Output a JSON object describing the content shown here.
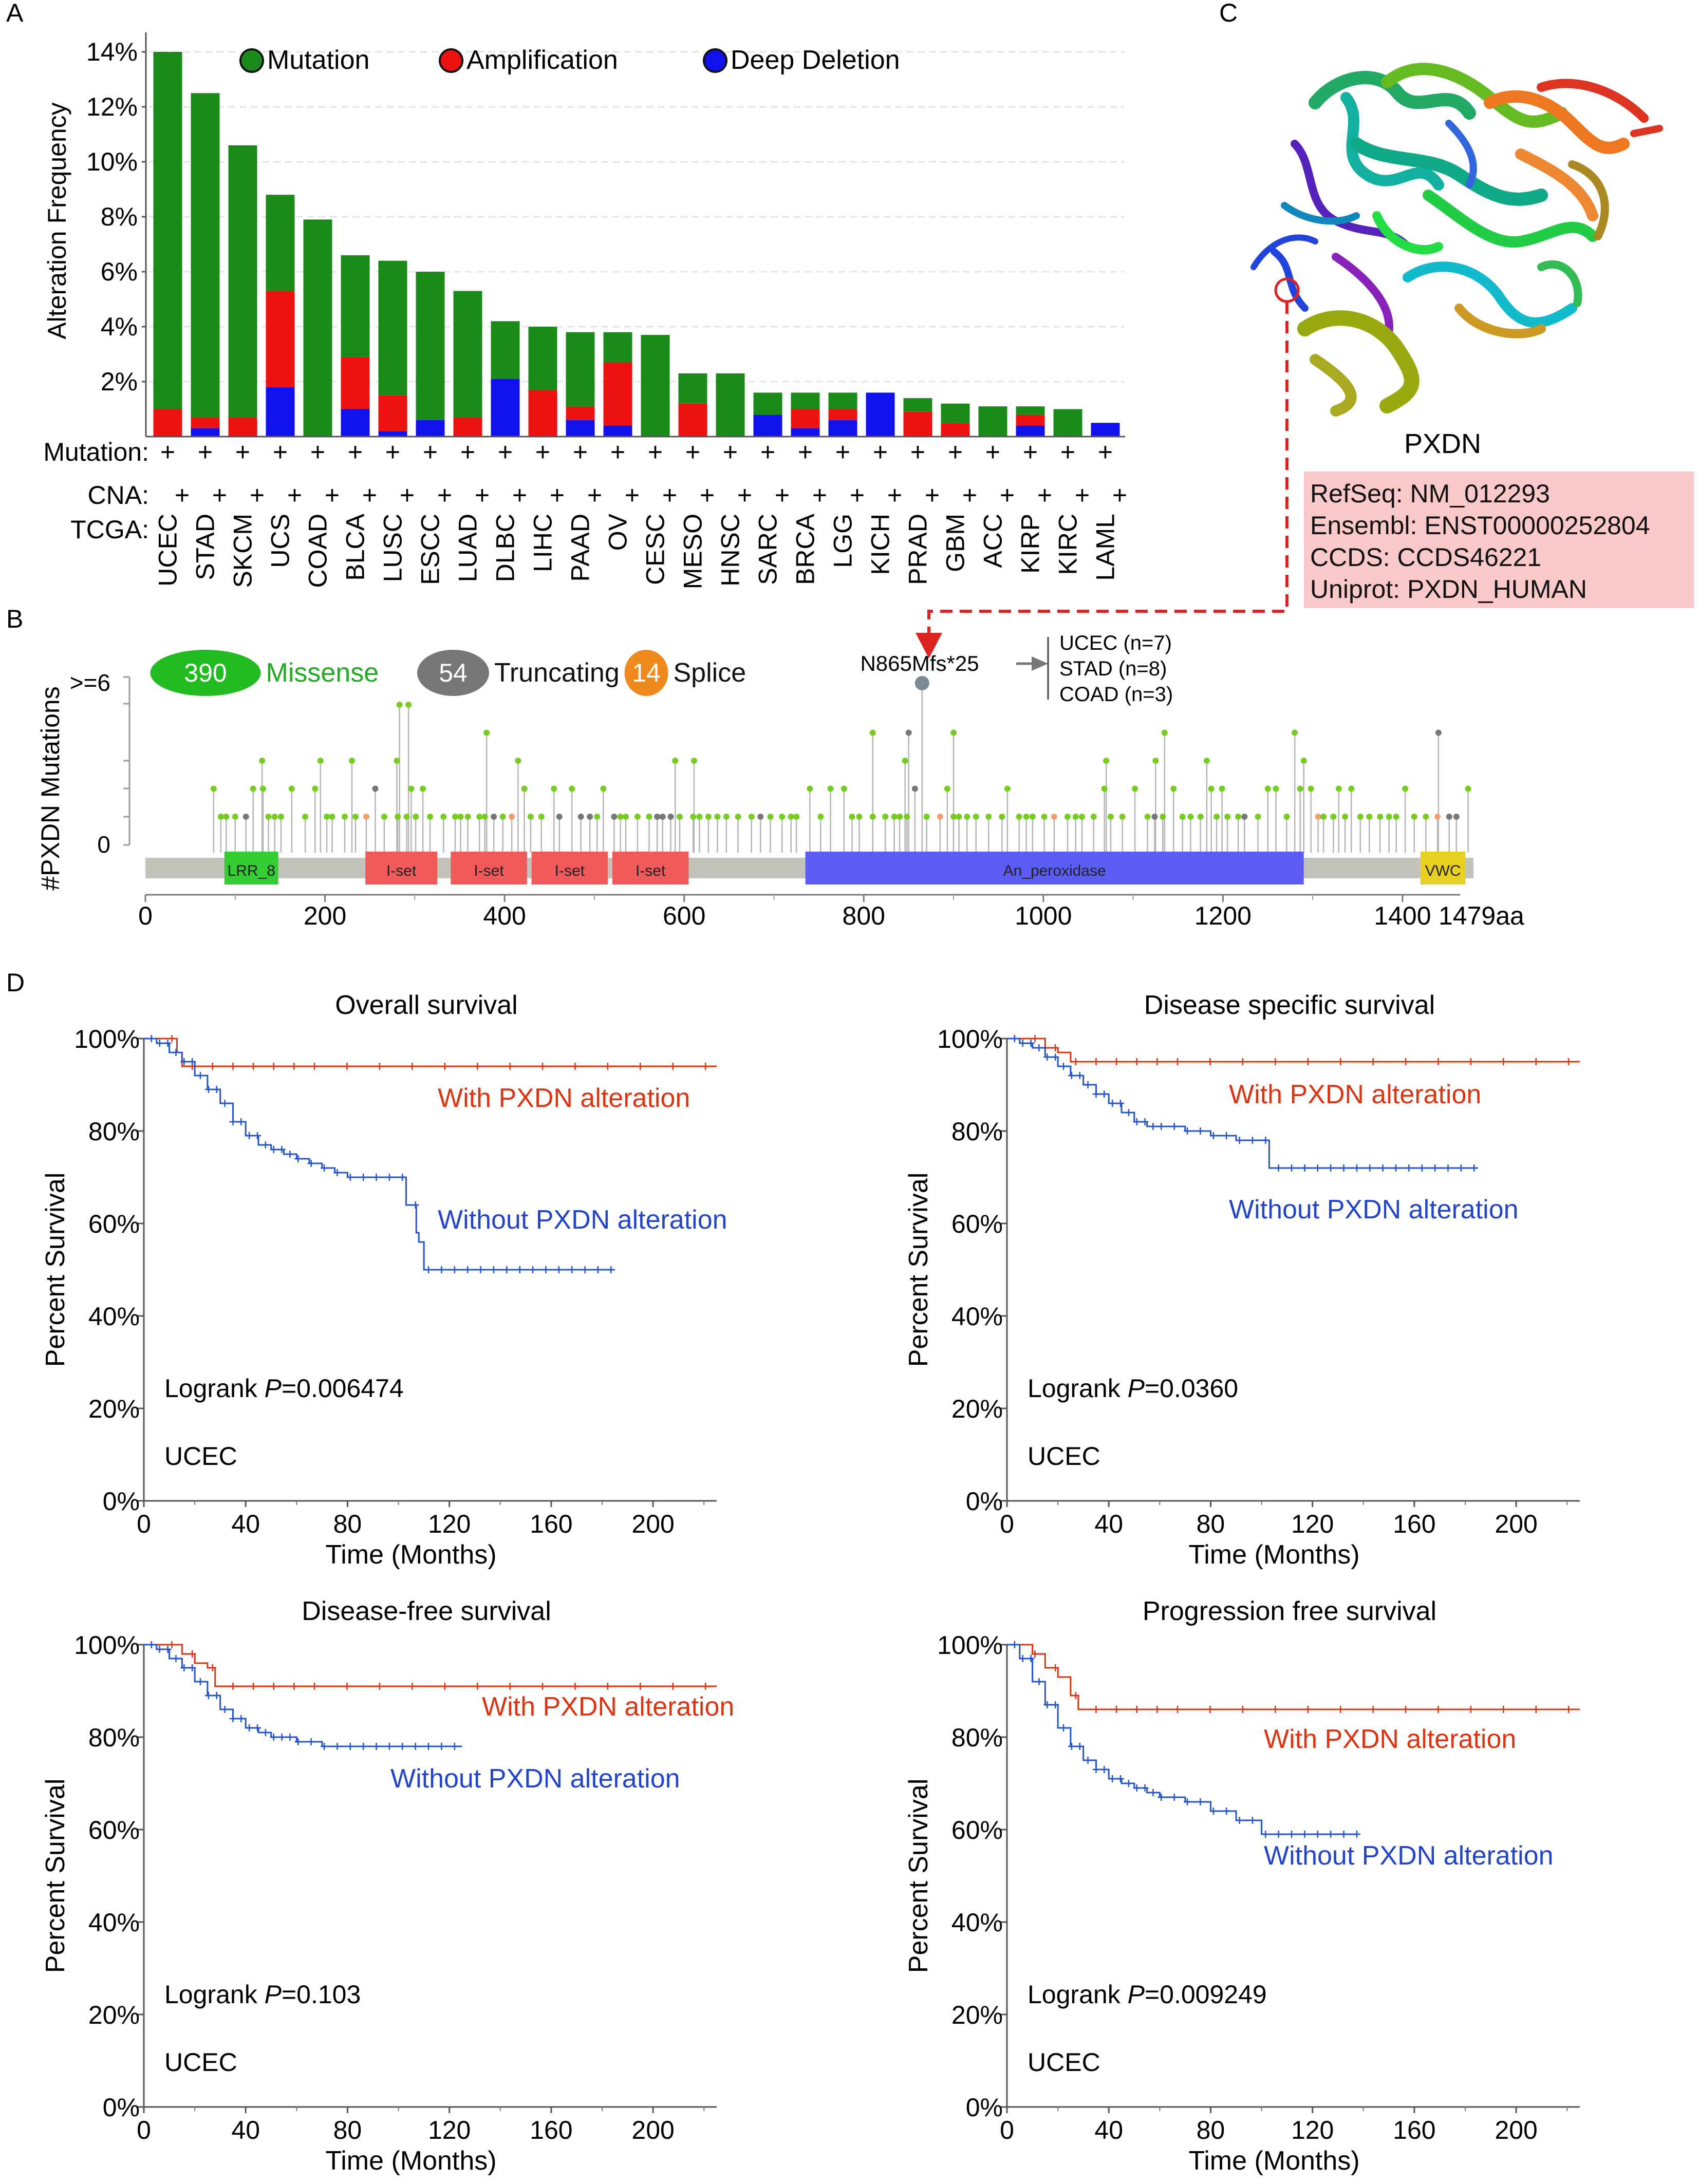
{
  "panel_labels": {
    "a": "A",
    "b": "B",
    "c": "C",
    "d": "D"
  },
  "panel_a": {
    "ylabel": "Alteration Frequency",
    "yticks": [
      "2%",
      "4%",
      "6%",
      "8%",
      "10%",
      "12%",
      "14%"
    ],
    "legend": [
      {
        "label": "Mutation",
        "color": "#1a8a1a"
      },
      {
        "label": "Amplification",
        "color": "#ee1111"
      },
      {
        "label": "Deep Deletion",
        "color": "#1111ee"
      }
    ],
    "row_labels": [
      "Mutation:",
      "CNA:",
      "TCGA:"
    ],
    "plus": "+"
  },
  "panel_b": {
    "ylabel": "#PXDN Mutations",
    "ytop": ">=6",
    "ybottom": "0",
    "badges": [
      {
        "count": "390",
        "label": "Missense",
        "color": "#22bb22",
        "label_color": "#22aa22"
      },
      {
        "count": "54",
        "label": "Truncating",
        "color": "#777777",
        "label_color": "#111111"
      },
      {
        "count": "14",
        "label": "Splice",
        "color": "#f08a1e",
        "label_color": "#111111"
      }
    ],
    "hotspot": "N865Mfs*25",
    "hotspot_cancers": [
      "UCEC  (n=7)",
      "STAD  (n=8)",
      "COAD  (n=3)"
    ],
    "domains": [
      {
        "name": "LRR_8",
        "start": 88,
        "end": 148,
        "color": "#33cc33"
      },
      {
        "name": "I-set",
        "start": 245,
        "end": 325,
        "color": "#f05a5a"
      },
      {
        "name": "I-set",
        "start": 340,
        "end": 425,
        "color": "#f05a5a"
      },
      {
        "name": "I-set",
        "start": 430,
        "end": 515,
        "color": "#f05a5a"
      },
      {
        "name": "I-set",
        "start": 520,
        "end": 605,
        "color": "#f05a5a"
      },
      {
        "name": "An_peroxidase",
        "start": 735,
        "end": 1290,
        "color": "#5b5bf5"
      },
      {
        "name": "VWC",
        "start": 1420,
        "end": 1470,
        "color": "#e8d020"
      }
    ],
    "xticks": [
      "0",
      "200",
      "400",
      "600",
      "800",
      "1000",
      "1200",
      "1400"
    ],
    "xend": "1479aa"
  },
  "panel_c": {
    "protein": "PXDN",
    "refs": [
      "RefSeq: NM_012293",
      "Ensembl: ENST00000252804",
      "CCDS: CCDS46221",
      "Uniprot: PXDN_HUMAN"
    ]
  },
  "panel_d": {
    "yticks": [
      "0%",
      "20%",
      "40%",
      "60%",
      "80%",
      "100%"
    ],
    "xticks": [
      "0",
      "40",
      "80",
      "120",
      "160",
      "200"
    ],
    "xlabel": "Time (Months)",
    "ylabel": "Percent Survival",
    "cohort": "UCEC",
    "logrank_prefix": "Logrank ",
    "p_symbol": "P",
    "with_label": "With PXDN alteration",
    "without_label": "Without PXDN alteration"
  },
  "chart_data": [
    {
      "type": "bar",
      "id": "alteration-frequency",
      "ylabel": "Alteration Frequency",
      "ylim": [
        0,
        15
      ],
      "categories": [
        "UCEC",
        "STAD",
        "SKCM",
        "UCS",
        "COAD",
        "BLCA",
        "LUSC",
        "ESCC",
        "LUAD",
        "DLBC",
        "LIHC",
        "PAAD",
        "OV",
        "CESC",
        "MESO",
        "HNSC",
        "SARC",
        "BRCA",
        "LGG",
        "KICH",
        "PRAD",
        "GBM",
        "ACC",
        "KIRP",
        "KIRC",
        "LAML"
      ],
      "series": [
        {
          "name": "Deep Deletion",
          "color": "#1111ee",
          "values": [
            0,
            0.3,
            0,
            1.8,
            0,
            1.0,
            0.2,
            0.6,
            0,
            2.1,
            0,
            0.6,
            0.4,
            0,
            0,
            0,
            0.8,
            0.3,
            0.6,
            1.6,
            0,
            0,
            0,
            0.4,
            0,
            0.5
          ]
        },
        {
          "name": "Amplification",
          "color": "#ee1111",
          "values": [
            1.0,
            0.4,
            0.7,
            3.5,
            0,
            1.9,
            1.3,
            0,
            0.7,
            0,
            1.7,
            0.5,
            2.3,
            0,
            1.2,
            0,
            0,
            0.7,
            0.4,
            0,
            0.9,
            0.5,
            0,
            0.4,
            0,
            0
          ]
        },
        {
          "name": "Mutation",
          "color": "#1a8a1a",
          "values": [
            13.0,
            11.8,
            9.9,
            3.5,
            7.9,
            3.7,
            4.9,
            5.4,
            4.6,
            2.1,
            2.3,
            2.7,
            1.1,
            3.7,
            1.1,
            2.3,
            0.8,
            0.6,
            0.6,
            0,
            0.5,
            0.7,
            1.1,
            0.3,
            1.0,
            0
          ]
        }
      ]
    },
    {
      "type": "lollipop",
      "id": "pxdn-mutations",
      "ylabel": "#PXDN Mutations",
      "ylim": [
        0,
        6
      ],
      "xlim": [
        0,
        1479
      ],
      "totals": {
        "Missense": 390,
        "Truncating": 54,
        "Splice": 14
      },
      "hotspot": {
        "position": 865,
        "label": "N865Mfs*25"
      },
      "tall_positions": [
        {
          "x": 130,
          "count": 3,
          "type": "missense"
        },
        {
          "x": 195,
          "count": 3,
          "type": "missense"
        },
        {
          "x": 230,
          "count": 3,
          "type": "missense"
        },
        {
          "x": 280,
          "count": 3,
          "type": "missense"
        },
        {
          "x": 283,
          "count": 5,
          "type": "missense"
        },
        {
          "x": 293,
          "count": 5,
          "type": "missense"
        },
        {
          "x": 296,
          "count": 2,
          "type": "missense"
        },
        {
          "x": 380,
          "count": 4,
          "type": "missense"
        },
        {
          "x": 415,
          "count": 3,
          "type": "missense"
        },
        {
          "x": 590,
          "count": 3,
          "type": "missense"
        },
        {
          "x": 611,
          "count": 3,
          "type": "missense"
        },
        {
          "x": 810,
          "count": 4,
          "type": "missense"
        },
        {
          "x": 846,
          "count": 3,
          "type": "missense"
        },
        {
          "x": 850,
          "count": 4,
          "type": "truncating"
        },
        {
          "x": 900,
          "count": 4,
          "type": "missense"
        },
        {
          "x": 1070,
          "count": 3,
          "type": "missense"
        },
        {
          "x": 1125,
          "count": 3,
          "type": "missense"
        },
        {
          "x": 1135,
          "count": 4,
          "type": "missense"
        },
        {
          "x": 1182,
          "count": 3,
          "type": "missense"
        },
        {
          "x": 1280,
          "count": 4,
          "type": "missense"
        },
        {
          "x": 1290,
          "count": 3,
          "type": "missense"
        },
        {
          "x": 1440,
          "count": 4,
          "type": "truncating"
        }
      ]
    },
    {
      "type": "line",
      "id": "overall-survival",
      "title": "Overall survival",
      "p_value": "=0.006474",
      "xlabel": "Time (Months)",
      "ylabel": "Percent Survival",
      "xlim": [
        0,
        225
      ],
      "ylim": [
        0,
        100
      ],
      "series": [
        {
          "name": "With PXDN alteration",
          "color": "#dd3311",
          "x": [
            0,
            10,
            13,
            15,
            25,
            225
          ],
          "y": [
            100,
            100,
            97,
            94,
            94,
            94
          ]
        },
        {
          "name": "Without PXDN alteration",
          "color": "#2255cc",
          "x": [
            0,
            5,
            10,
            15,
            20,
            25,
            30,
            35,
            40,
            45,
            50,
            55,
            60,
            65,
            70,
            75,
            80,
            85,
            90,
            95,
            100,
            103,
            105,
            107,
            108,
            110,
            185
          ],
          "y": [
            100,
            99,
            97,
            95,
            92,
            89,
            86,
            82,
            79,
            77,
            76,
            75,
            74,
            73,
            72,
            71,
            70,
            70,
            70,
            70,
            70,
            64,
            64,
            58,
            56,
            50,
            50
          ]
        }
      ]
    },
    {
      "type": "line",
      "id": "disease-specific-survival",
      "title": "Disease specific survival",
      "p_value": "=0.0360",
      "xlabel": "Time (Months)",
      "ylabel": "Percent Survival",
      "xlim": [
        0,
        225
      ],
      "ylim": [
        0,
        100
      ],
      "series": [
        {
          "name": "With PXDN alteration",
          "color": "#dd3311",
          "x": [
            0,
            10,
            15,
            20,
            25,
            225
          ],
          "y": [
            100,
            100,
            98,
            97,
            95,
            95
          ]
        },
        {
          "name": "Without PXDN alteration",
          "color": "#2255cc",
          "x": [
            0,
            5,
            10,
            15,
            20,
            25,
            30,
            35,
            40,
            45,
            50,
            55,
            60,
            70,
            80,
            90,
            100,
            103,
            185
          ],
          "y": [
            100,
            99,
            98,
            96,
            94,
            92,
            90,
            88,
            86,
            84,
            82,
            81,
            81,
            80,
            79,
            78,
            78,
            72,
            72
          ]
        }
      ]
    },
    {
      "type": "line",
      "id": "disease-free-survival",
      "title": "Disease-free survival",
      "p_value": "=0.103",
      "xlabel": "Time (Months)",
      "ylabel": "Percent Survival",
      "xlim": [
        0,
        225
      ],
      "ylim": [
        0,
        100
      ],
      "series": [
        {
          "name": "With PXDN alteration",
          "color": "#dd3311",
          "x": [
            0,
            10,
            15,
            20,
            25,
            28,
            225
          ],
          "y": [
            100,
            100,
            98,
            96,
            95,
            91,
            91
          ]
        },
        {
          "name": "Without PXDN alteration",
          "color": "#2255cc",
          "x": [
            0,
            5,
            10,
            15,
            20,
            25,
            30,
            35,
            40,
            45,
            50,
            55,
            60,
            70,
            80,
            125
          ],
          "y": [
            100,
            99,
            97,
            95,
            92,
            89,
            86,
            84,
            82,
            81,
            80,
            80,
            79,
            78,
            78,
            78
          ]
        }
      ]
    },
    {
      "type": "line",
      "id": "progression-free-survival",
      "title": "Progression free survival",
      "p_value": "=0.009249",
      "xlabel": "Time (Months)",
      "ylabel": "Percent Survival",
      "xlim": [
        0,
        225
      ],
      "ylim": [
        0,
        100
      ],
      "series": [
        {
          "name": "With PXDN alteration",
          "color": "#dd3311",
          "x": [
            0,
            10,
            15,
            20,
            25,
            28,
            225
          ],
          "y": [
            100,
            98,
            95,
            93,
            89,
            86,
            86
          ]
        },
        {
          "name": "Without PXDN alteration",
          "color": "#2255cc",
          "x": [
            0,
            5,
            10,
            15,
            20,
            25,
            30,
            35,
            40,
            45,
            50,
            55,
            60,
            70,
            80,
            90,
            100,
            138
          ],
          "y": [
            100,
            97,
            92,
            87,
            82,
            78,
            75,
            73,
            71,
            70,
            69,
            68,
            67,
            66,
            64,
            62,
            59,
            59
          ]
        }
      ]
    }
  ]
}
